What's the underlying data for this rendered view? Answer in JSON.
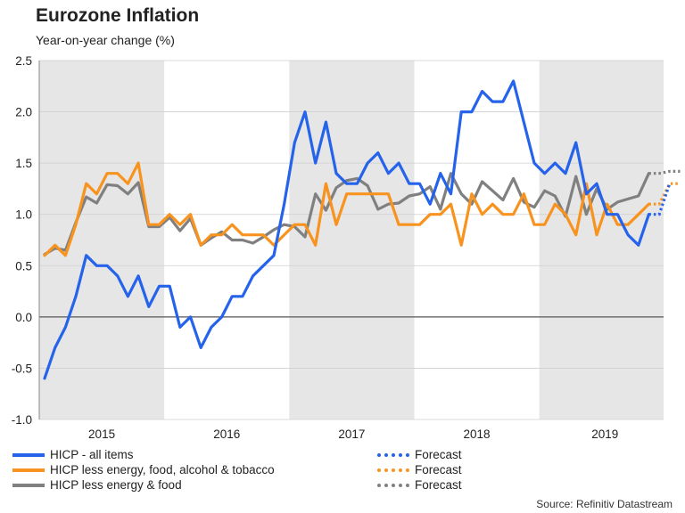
{
  "title": "Eurozone Inflation",
  "subtitle": "Year-on-year change (%)",
  "source": "Source: Refinitiv Datastream",
  "legend": {
    "hicp_all": "HICP - all items",
    "hicp_core_alc": "HICP less energy, food, alcohol & tobacco",
    "hicp_core": "HICP less energy & food",
    "forecast_1": "Forecast",
    "forecast_2": "Forecast",
    "forecast_3": "Forecast"
  },
  "colors": {
    "hicp_all": "#2563eb",
    "hicp_core_alc": "#f7931e",
    "hicp_core": "#808080",
    "shade": "#e6e6e6",
    "zero_line": "#555555"
  },
  "chart_data": {
    "type": "line",
    "title": "Eurozone Inflation",
    "ylabel": "Year-on-year change (%)",
    "xlabel": "",
    "ylim": [
      -1.0,
      2.5
    ],
    "yticks": [
      "-1.0",
      "-0.5",
      "0.0",
      "0.5",
      "1.0",
      "1.5",
      "2.0",
      "2.5"
    ],
    "ytick_values": [
      -1.0,
      -0.5,
      0.0,
      0.5,
      1.0,
      1.5,
      2.0,
      2.5
    ],
    "years": [
      "2015",
      "2016",
      "2017",
      "2018",
      "2019"
    ],
    "shaded_years": [
      "2015",
      "2017",
      "2019"
    ],
    "x_start": "2015-01",
    "series": [
      {
        "name": "HICP - all items",
        "values": [
          -0.6,
          -0.3,
          -0.1,
          0.2,
          0.6,
          0.5,
          0.5,
          0.4,
          0.2,
          0.4,
          0.1,
          0.3,
          0.3,
          -0.1,
          0.0,
          -0.3,
          -0.1,
          0.0,
          0.2,
          0.2,
          0.4,
          0.5,
          0.6,
          1.1,
          1.7,
          2.0,
          1.5,
          1.9,
          1.4,
          1.3,
          1.3,
          1.5,
          1.6,
          1.4,
          1.5,
          1.3,
          1.3,
          1.1,
          1.4,
          1.2,
          2.0,
          2.0,
          2.2,
          2.1,
          2.1,
          2.3,
          1.9,
          1.5,
          1.4,
          1.5,
          1.4,
          1.7,
          1.2,
          1.3,
          1.0,
          1.0,
          0.8,
          0.7,
          1.0
        ],
        "forecast": [
          1.0,
          1.3
        ]
      },
      {
        "name": "HICP less energy, food, alcohol & tobacco",
        "values": [
          0.6,
          0.7,
          0.6,
          0.9,
          1.3,
          1.2,
          1.4,
          1.4,
          1.3,
          1.5,
          0.9,
          0.9,
          1.0,
          0.9,
          1.0,
          0.7,
          0.8,
          0.8,
          0.9,
          0.8,
          0.8,
          0.8,
          0.7,
          0.8,
          0.9,
          0.9,
          0.7,
          1.3,
          0.9,
          1.2,
          1.2,
          1.2,
          1.2,
          1.2,
          0.9,
          0.9,
          0.9,
          1.0,
          1.0,
          1.1,
          0.7,
          1.2,
          1.0,
          1.1,
          1.0,
          1.0,
          1.2,
          0.9,
          0.9,
          1.1,
          1.0,
          0.8,
          1.3,
          0.8,
          1.1,
          0.9,
          0.9,
          1.0,
          1.1
        ],
        "forecast": [
          1.1,
          1.3,
          1.3
        ]
      },
      {
        "name": "HICP less energy & food",
        "values": [
          0.61,
          0.67,
          0.65,
          0.92,
          1.17,
          1.11,
          1.29,
          1.28,
          1.2,
          1.31,
          0.88,
          0.88,
          0.97,
          0.84,
          0.96,
          0.7,
          0.77,
          0.83,
          0.75,
          0.75,
          0.72,
          0.78,
          0.85,
          0.9,
          0.88,
          0.78,
          1.2,
          1.04,
          1.26,
          1.33,
          1.35,
          1.28,
          1.05,
          1.1,
          1.11,
          1.18,
          1.2,
          1.27,
          1.05,
          1.4,
          1.2,
          1.1,
          1.32,
          1.23,
          1.14,
          1.35,
          1.12,
          1.07,
          1.23,
          1.18,
          0.98,
          1.37,
          1.0,
          1.25,
          1.05,
          1.12,
          1.15,
          1.18,
          1.4
        ],
        "forecast": [
          1.4,
          1.42,
          1.42
        ]
      }
    ]
  }
}
